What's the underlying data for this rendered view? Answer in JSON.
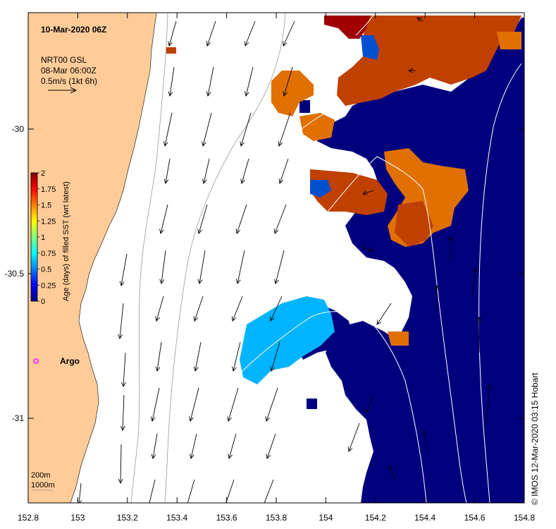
{
  "title": "10-Mar-2020 06Z",
  "product": {
    "line1": "NRT00 GSL",
    "line2": "08-Mar 06:00Z",
    "scale_label": "0.5m/s (1kt 6h)"
  },
  "colorbar": {
    "label": "Age (days) of filled SST (wrt latest)",
    "ticks": [
      "0",
      "0.25",
      "0.5",
      "0.75",
      "1",
      "1.25",
      "1.5",
      "1.75",
      "2"
    ],
    "colors": [
      "#00007f",
      "#0000ff",
      "#0080ff",
      "#00ffff",
      "#80ff80",
      "#ffff00",
      "#ff8000",
      "#ff0000",
      "#7f0000"
    ]
  },
  "x_axis": {
    "ticks": [
      "152.8",
      "153",
      "153.2",
      "153.4",
      "153.6",
      "153.8",
      "154",
      "154.2",
      "154.4",
      "154.6",
      "154.8"
    ]
  },
  "y_axis": {
    "ticks": [
      "-30",
      "-30.5",
      "-31"
    ]
  },
  "argo": {
    "label": "Argo",
    "color": "#ff33ff"
  },
  "depth_legend": {
    "line1": "200m",
    "line2": "1000m"
  },
  "credit": "© IMOS 12-Mar-2020 03:15 Hobart",
  "colors": {
    "land": "#ffcc99",
    "dark_blue": "#00007f",
    "dark_red": "#a00000",
    "rust": "#c04000",
    "orange": "#e07000",
    "light_blue": "#00b4ff",
    "mid_blue": "#0050d0"
  }
}
